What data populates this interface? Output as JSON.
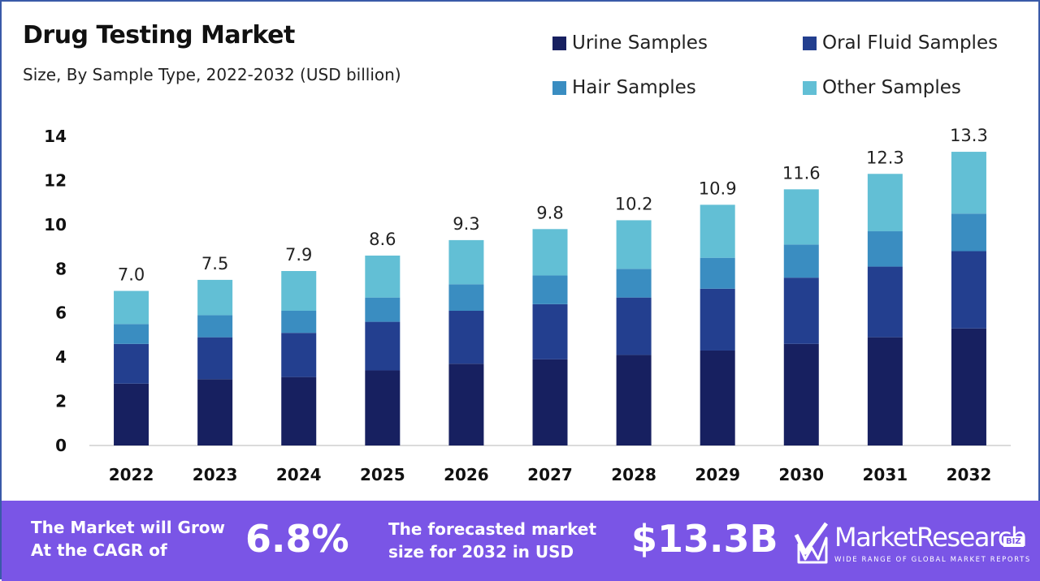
{
  "chart_data": {
    "type": "bar",
    "stacked": true,
    "title": "Drug Testing Market",
    "subtitle": "Size, By Sample Type, 2022-2032 (USD billion)",
    "xlabel": "",
    "ylabel": "",
    "categories": [
      "2022",
      "2023",
      "2024",
      "2025",
      "2026",
      "2027",
      "2028",
      "2029",
      "2030",
      "2031",
      "2032"
    ],
    "series": [
      {
        "name": "Urine Samples",
        "color": "#172060",
        "values": [
          2.8,
          3.0,
          3.1,
          3.4,
          3.7,
          3.9,
          4.1,
          4.3,
          4.6,
          4.9,
          5.3
        ]
      },
      {
        "name": "Oral Fluid Samples",
        "color": "#233f8f",
        "values": [
          1.8,
          1.9,
          2.0,
          2.2,
          2.4,
          2.5,
          2.6,
          2.8,
          3.0,
          3.2,
          3.5
        ]
      },
      {
        "name": "Hair Samples",
        "color": "#3a8dc1",
        "values": [
          0.9,
          1.0,
          1.0,
          1.1,
          1.2,
          1.3,
          1.3,
          1.4,
          1.5,
          1.6,
          1.7
        ]
      },
      {
        "name": "Other Samples",
        "color": "#62bfd5",
        "values": [
          1.5,
          1.6,
          1.8,
          1.9,
          2.0,
          2.1,
          2.2,
          2.4,
          2.5,
          2.6,
          2.8
        ]
      }
    ],
    "totals": [
      "7.0",
      "7.5",
      "7.9",
      "8.6",
      "9.3",
      "9.8",
      "10.2",
      "10.9",
      "11.6",
      "12.3",
      "13.3"
    ],
    "ylim": [
      0,
      14
    ],
    "yticks": [
      0,
      2,
      4,
      6,
      8,
      10,
      12,
      14
    ],
    "grid": false,
    "legend_position": "top-right"
  },
  "footer": {
    "cagr_label_line1": "The Market will Grow",
    "cagr_label_line2": "At the CAGR of",
    "cagr_value": "6.8%",
    "forecast_label_line1": "The forecasted market",
    "forecast_label_line2": "size for 2032 in USD",
    "forecast_value": "$13.3B",
    "logo_name": "MarketResearch",
    "logo_badge": "BIZ",
    "logo_tagline": "WIDE RANGE OF GLOBAL MARKET REPORTS",
    "logo_icon": "checkmark-m-logo-icon",
    "background_color": "#7a55e6"
  }
}
